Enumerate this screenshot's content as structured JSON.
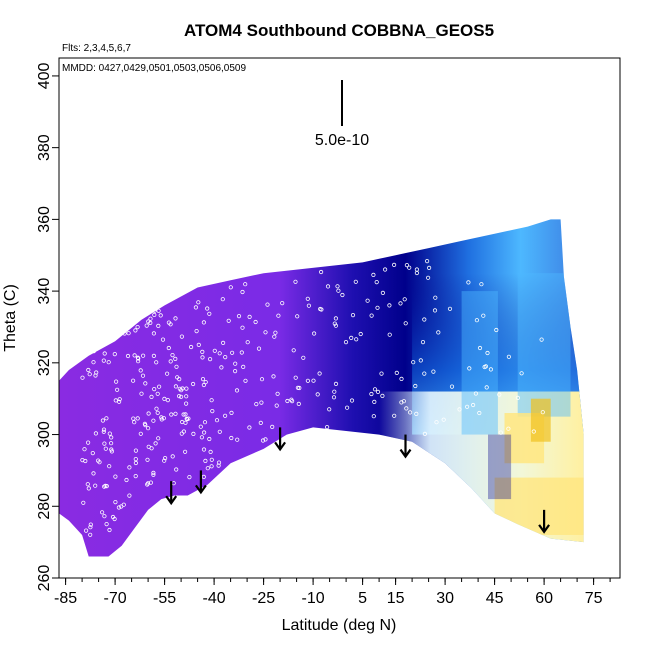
{
  "chart_data": {
    "type": "heatmap",
    "title": "ATOM4 Southbound COBBNA_GEOS5",
    "flights_note": "Flts: 2,3,4,5,6,7",
    "dates_note": "MMDD: 0427,0429,0501,0503,0506,0509",
    "xlabel": "Latitude (deg N)",
    "ylabel": "Theta (C)",
    "xlim": [
      -87,
      83
    ],
    "ylim": [
      260,
      405
    ],
    "x_ticks": [
      -85,
      -70,
      -55,
      -40,
      -25,
      -10,
      5,
      15,
      30,
      45,
      60,
      75
    ],
    "y_ticks": [
      260,
      280,
      300,
      320,
      340,
      360,
      380,
      400
    ],
    "scale_label": "5.0e-10",
    "colors": {
      "low": "#8a2be2",
      "mid": "#00008b",
      "light_blue": "#4db8ff",
      "pale": "#e6f7ff",
      "high": "#ffe680"
    },
    "arrows_at_latitude": [
      -53,
      -44,
      -20,
      18,
      60
    ],
    "field_regions": [
      {
        "lat_range": [
          -87,
          -10
        ],
        "theta_range": [
          268,
          338
        ],
        "level": "low"
      },
      {
        "lat_range": [
          -10,
          45
        ],
        "theta_range": [
          300,
          350
        ],
        "level": "mid"
      },
      {
        "lat_range": [
          40,
          65
        ],
        "theta_range": [
          290,
          330
        ],
        "level": "light_blue"
      },
      {
        "lat_range": [
          45,
          70
        ],
        "theta_range": [
          272,
          310
        ],
        "level": "high"
      }
    ]
  }
}
